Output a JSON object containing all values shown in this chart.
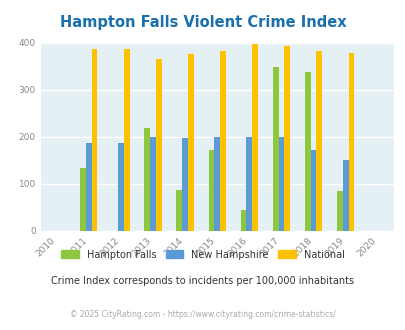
{
  "title": "Hampton Falls Violent Crime Index",
  "all_years": [
    2010,
    2011,
    2012,
    2013,
    2014,
    2015,
    2016,
    2017,
    2018,
    2019,
    2020
  ],
  "data_years": [
    2011,
    2012,
    2013,
    2014,
    2015,
    2016,
    2017,
    2018,
    2019
  ],
  "hampton_falls": [
    135,
    0,
    220,
    88,
    172,
    45,
    348,
    338,
    85
  ],
  "new_hampshire": [
    188,
    188,
    200,
    198,
    200,
    200,
    200,
    172,
    152
  ],
  "national": [
    387,
    387,
    365,
    376,
    383,
    398,
    394,
    382,
    378
  ],
  "hampton_color": "#8dc63f",
  "nh_color": "#5b9bd5",
  "national_color": "#ffc000",
  "plot_bg_color": "#e5f0f5",
  "legend_labels": [
    "Hampton Falls",
    "New Hampshire",
    "National"
  ],
  "subtitle": "Crime Index corresponds to incidents per 100,000 inhabitants",
  "footer": "© 2025 CityRating.com - https://www.cityrating.com/crime-statistics/",
  "title_color": "#1a6fad",
  "subtitle_color": "#333333",
  "footer_color": "#aaaaaa",
  "ylim": [
    0,
    400
  ],
  "yticks": [
    0,
    100,
    200,
    300,
    400
  ]
}
